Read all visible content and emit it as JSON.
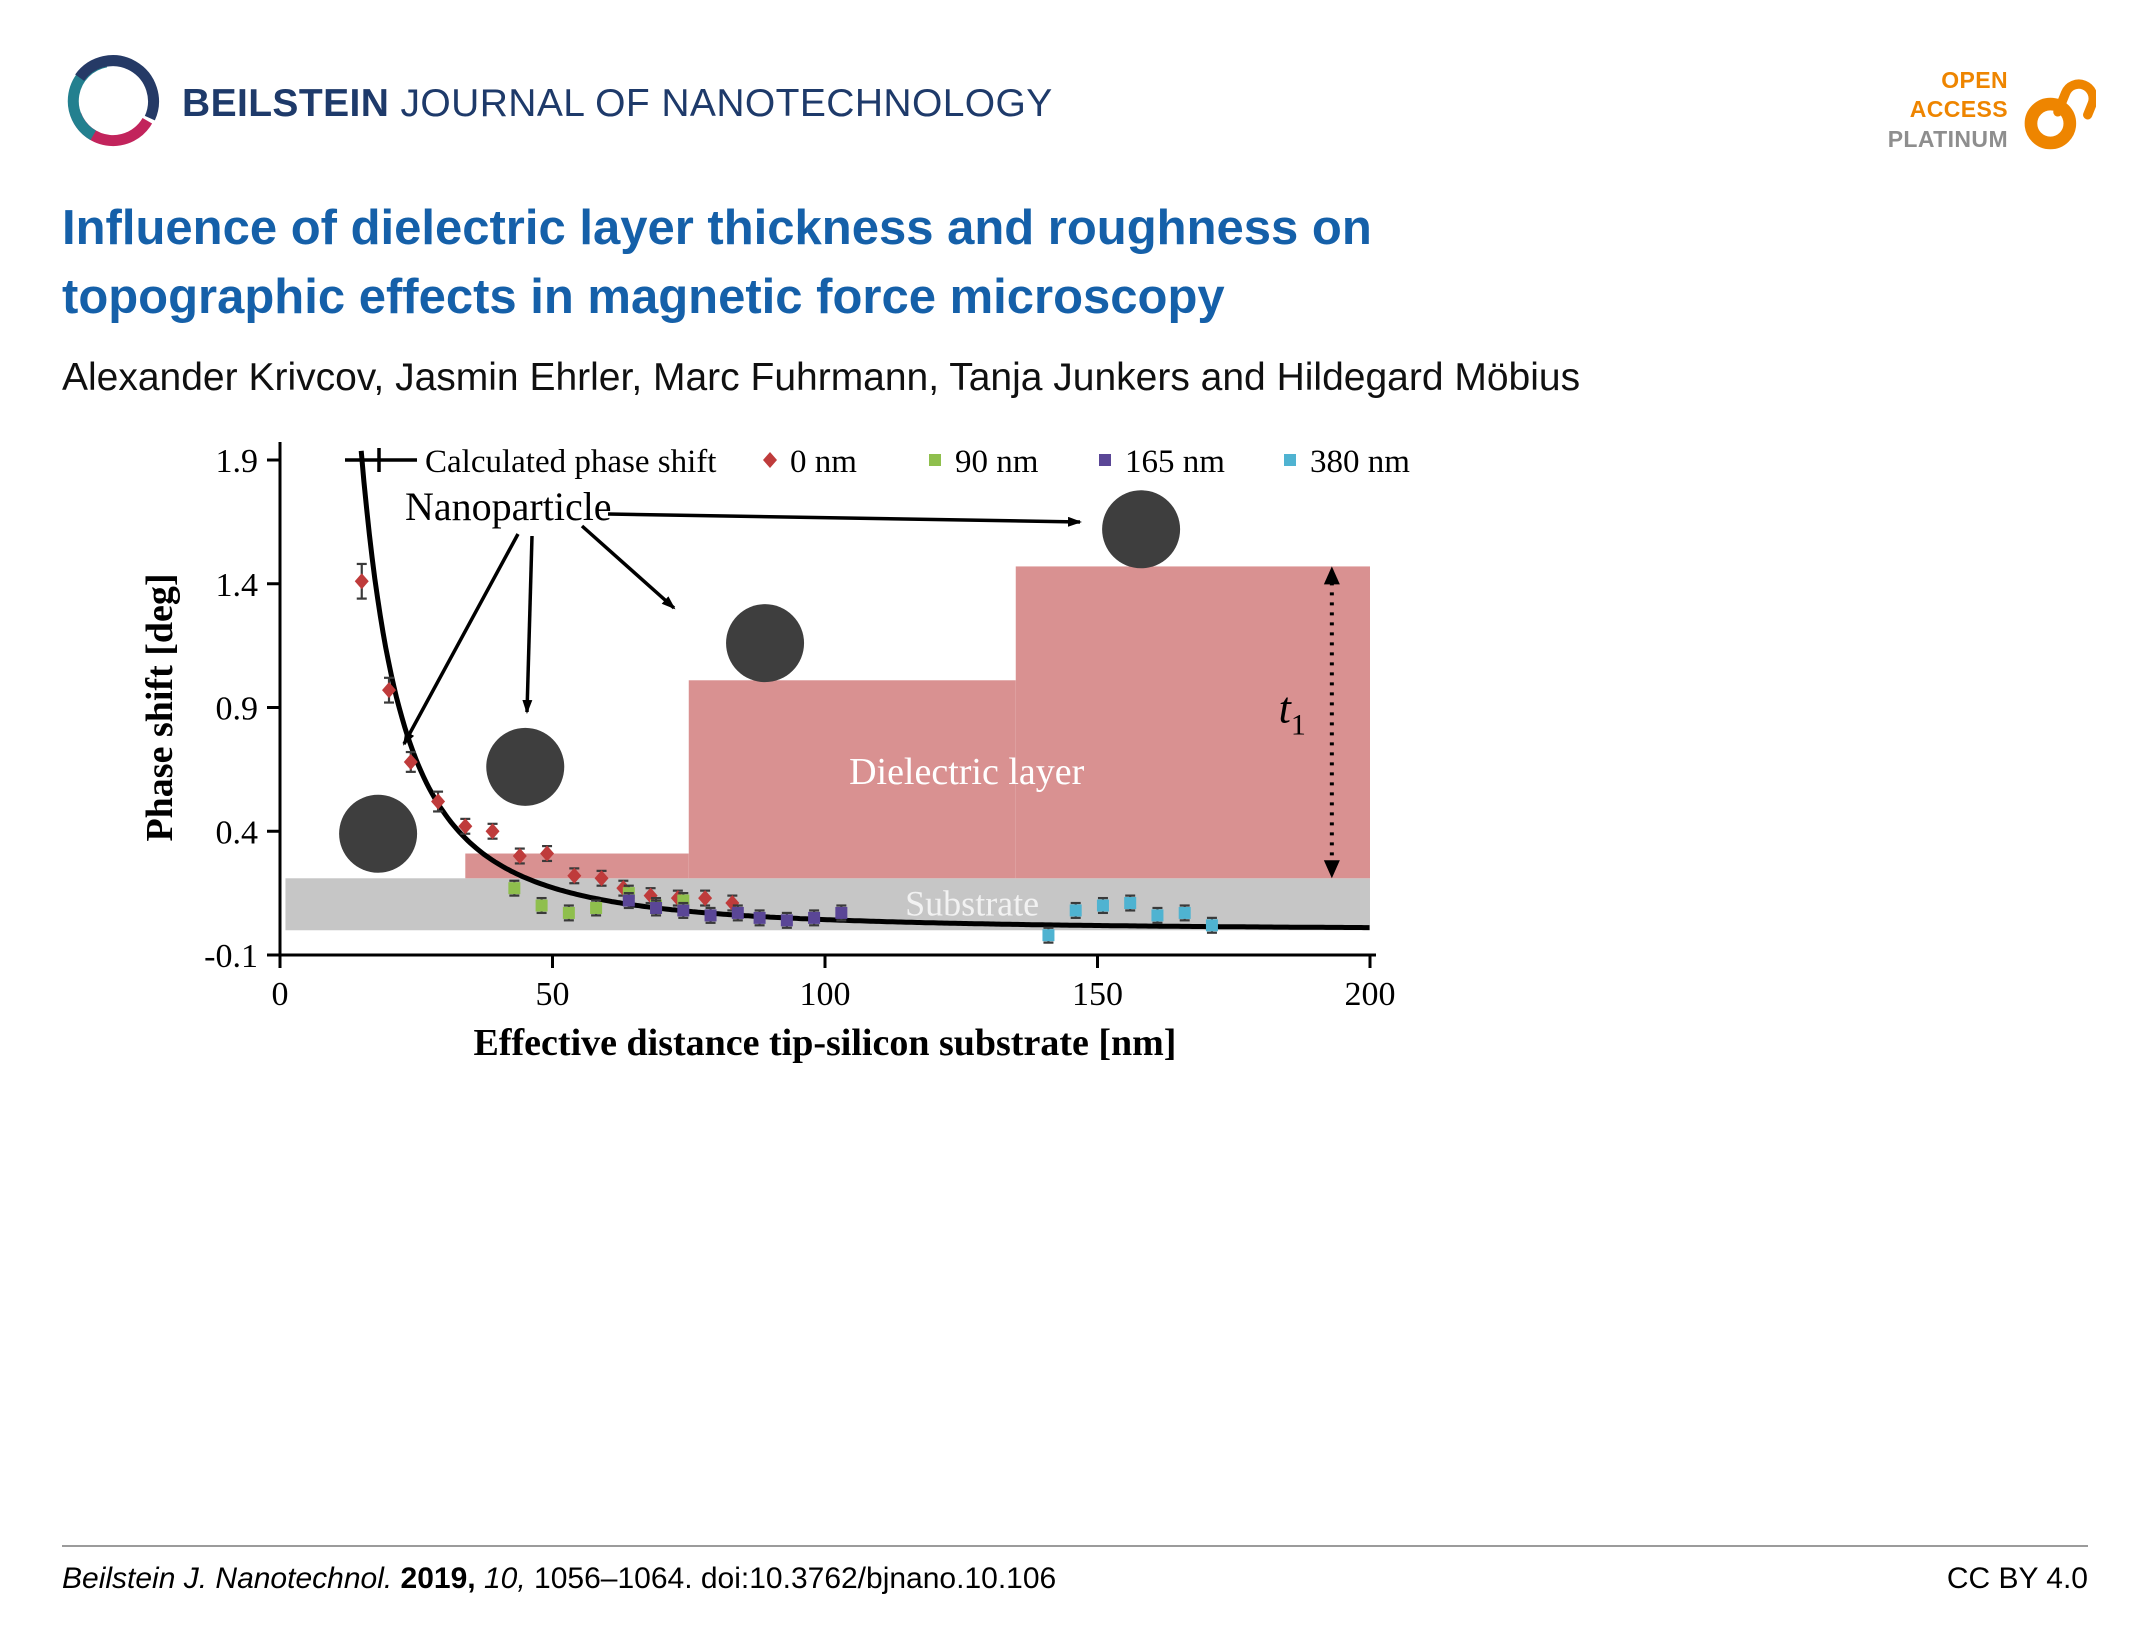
{
  "header": {
    "journal_bold": "BEILSTEIN",
    "journal_rest": " JOURNAL OF NANOTECHNOLOGY",
    "open_access": {
      "line1": "OPEN",
      "line2": "ACCESS",
      "line3": "PLATINUM"
    }
  },
  "title": {
    "line1": "Influence of dielectric layer thickness and roughness on",
    "line2": "topographic effects in magnetic force microscopy"
  },
  "authors": "Alexander Krivcov, Jasmin Ehrler, Marc Fuhrmann, Tanja Junkers and Hildegard Möbius",
  "footer": {
    "citation": {
      "journal": "Beilstein J. Nanotechnol.",
      "year": "2019,",
      "volume": "10,",
      "pages": "1056–1064.",
      "doi": "doi:10.3762/bjnano.10.106"
    },
    "license": "CC BY 4.0"
  },
  "chart_data": {
    "type": "scatter",
    "title": "",
    "xlabel": "Effective distance tip-silicon substrate [nm]",
    "ylabel": "Phase shift [deg]",
    "xlim": [
      0,
      200
    ],
    "ylim": [
      -0.1,
      1.9
    ],
    "xticks": [
      "0",
      "50",
      "100",
      "150",
      "200"
    ],
    "yticks": [
      "1.9",
      "1.4",
      "0.9",
      "0.4",
      "-0.1"
    ],
    "grid": false,
    "legend_position": "top",
    "legend": [
      {
        "label": "Calculated phase shift",
        "marker": "line-cross",
        "color": "#000000"
      },
      {
        "label": "0 nm",
        "marker": "diamond",
        "color": "#bf3b3b"
      },
      {
        "label": "90 nm",
        "marker": "square",
        "color": "#8fbf4d"
      },
      {
        "label": "165 nm",
        "marker": "square",
        "color": "#5a4696"
      },
      {
        "label": "380 nm",
        "marker": "square",
        "color": "#4fb3d1"
      }
    ],
    "curve": {
      "name": "Calculated phase shift",
      "model": "y = a / x^2",
      "a": 430,
      "x_range": [
        14.9,
        200
      ],
      "color": "#000000"
    },
    "series": [
      {
        "name": "0 nm",
        "marker": "diamond",
        "color": "#bf3b3b",
        "points": [
          [
            15,
            1.41,
            0.07
          ],
          [
            20,
            0.97,
            0.05
          ],
          [
            24,
            0.68,
            0.04
          ],
          [
            29,
            0.52,
            0.04
          ],
          [
            34,
            0.42,
            0.03
          ],
          [
            39,
            0.4,
            0.03
          ],
          [
            44,
            0.3,
            0.03
          ],
          [
            49,
            0.31,
            0.03
          ],
          [
            54,
            0.22,
            0.03
          ],
          [
            59,
            0.21,
            0.03
          ],
          [
            63,
            0.17,
            0.03
          ],
          [
            68,
            0.14,
            0.03
          ],
          [
            73,
            0.13,
            0.03
          ],
          [
            78,
            0.13,
            0.03
          ],
          [
            83,
            0.11,
            0.03
          ]
        ]
      },
      {
        "name": "90 nm",
        "marker": "square",
        "color": "#8fbf4d",
        "points": [
          [
            43,
            0.17,
            0.03
          ],
          [
            48,
            0.1,
            0.03
          ],
          [
            53,
            0.07,
            0.03
          ],
          [
            58,
            0.09,
            0.03
          ],
          [
            64,
            0.15,
            0.03
          ],
          [
            69,
            0.1,
            0.03
          ],
          [
            74,
            0.12,
            0.03
          ]
        ]
      },
      {
        "name": "165 nm",
        "marker": "square",
        "color": "#5a4696",
        "points": [
          [
            64,
            0.12,
            0.03
          ],
          [
            69,
            0.09,
            0.03
          ],
          [
            74,
            0.08,
            0.03
          ],
          [
            79,
            0.06,
            0.03
          ],
          [
            84,
            0.07,
            0.03
          ],
          [
            88,
            0.05,
            0.03
          ],
          [
            93,
            0.04,
            0.03
          ],
          [
            98,
            0.05,
            0.03
          ],
          [
            103,
            0.07,
            0.03
          ]
        ]
      },
      {
        "name": "380 nm",
        "marker": "square",
        "color": "#4fb3d1",
        "points": [
          [
            141,
            -0.02,
            0.03
          ],
          [
            146,
            0.08,
            0.03
          ],
          [
            151,
            0.1,
            0.03
          ],
          [
            156,
            0.11,
            0.03
          ],
          [
            161,
            0.06,
            0.03
          ],
          [
            166,
            0.07,
            0.03
          ],
          [
            171,
            0.02,
            0.03
          ]
        ]
      }
    ],
    "regions": {
      "substrate": {
        "label": "Substrate",
        "x": [
          1,
          200
        ],
        "y": [
          0.0,
          0.21
        ],
        "color": "#c6c6c6",
        "label_color": "#f2f2f2"
      },
      "dielectric": {
        "label": "Dielectric layer",
        "color": "#d99191",
        "label_color": "#ffffff",
        "steps": [
          {
            "x": [
              34,
              75
            ],
            "y_top": 0.31
          },
          {
            "x": [
              75,
              135
            ],
            "y_top": 1.01
          },
          {
            "x": [
              135,
              200
            ],
            "y_top": 1.47
          }
        ]
      }
    },
    "nanoparticles": {
      "label": "Nanoparticle",
      "color": "#3e3e3e",
      "positions": [
        {
          "x": 18,
          "y": 0.39
        },
        {
          "x": 45,
          "y": 0.66
        },
        {
          "x": 89,
          "y": 1.16
        },
        {
          "x": 158,
          "y": 1.62
        }
      ]
    },
    "thickness_annotation": {
      "label": "t",
      "sub": "1",
      "x": 193,
      "y_top": 1.47,
      "y_bottom": 0.21
    }
  }
}
